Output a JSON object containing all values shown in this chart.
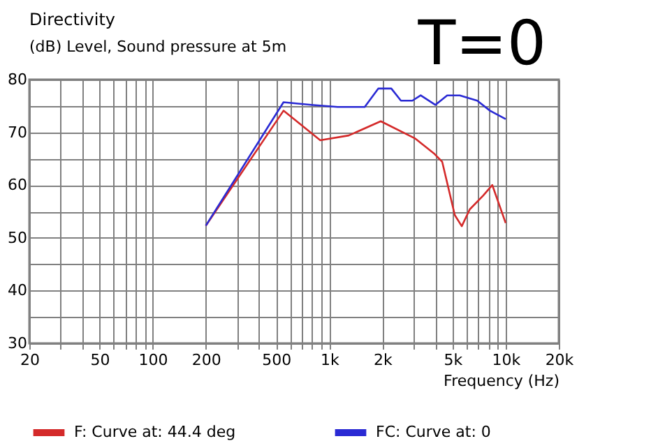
{
  "chart_data": {
    "type": "line",
    "title": "Directivity",
    "subtitle": "(dB) Level, Sound pressure at 5m",
    "xlabel": "Frequency (Hz)",
    "annotations": [
      "T=0"
    ],
    "log": "x",
    "grid": true,
    "legend": "bottom",
    "xlim": [
      20,
      20000
    ],
    "ylim": [
      30,
      80
    ],
    "xticks": [
      20,
      {
        "value": 30,
        "label": null
      },
      {
        "value": 40,
        "label": null
      },
      50,
      {
        "value": 60,
        "label": null
      },
      {
        "value": 70,
        "label": null
      },
      {
        "value": 80,
        "label": null
      },
      {
        "value": 90,
        "label": null
      },
      100,
      200,
      {
        "value": 300,
        "label": null
      },
      {
        "value": 400,
        "label": null
      },
      500,
      {
        "value": 600,
        "label": null
      },
      {
        "value": 700,
        "label": null
      },
      {
        "value": 800,
        "label": null
      },
      {
        "value": 900,
        "label": null
      },
      {
        "value": 1000,
        "label": "1k"
      },
      {
        "value": 2000,
        "label": "2k"
      },
      {
        "value": 3000,
        "label": null
      },
      {
        "value": 4000,
        "label": null
      },
      {
        "value": 5000,
        "label": "5k"
      },
      {
        "value": 6000,
        "label": null
      },
      {
        "value": 7000,
        "label": null
      },
      {
        "value": 8000,
        "label": null
      },
      {
        "value": 9000,
        "label": null
      },
      {
        "value": 10000,
        "label": "10k"
      },
      {
        "value": 20000,
        "label": "20k"
      }
    ],
    "yticks": [
      30,
      {
        "value": 35,
        "label": null
      },
      40,
      {
        "value": 45,
        "label": null
      },
      50,
      {
        "value": 55,
        "label": null
      },
      60,
      {
        "value": 65,
        "label": null
      },
      70,
      {
        "value": 75,
        "label": null
      },
      80
    ],
    "series": [
      {
        "name": "F: Curve at: 44.4 deg",
        "color": "#d42a2a",
        "x": [
          200,
          551,
          890,
          1290,
          1960,
          3080,
          3950,
          4370,
          5150,
          5640,
          6260,
          7450,
          8400,
          10000
        ],
        "values": [
          52.3,
          74.1,
          68.5,
          69.4,
          72.1,
          68.8,
          65.9,
          64.4,
          54.3,
          52.2,
          55.4,
          58,
          60,
          52.8
        ]
      },
      {
        "name": "FC: Curve at: 0",
        "color": "#2a2ad4",
        "x": [
          200,
          551,
          790,
          1115,
          1590,
          1900,
          2250,
          2550,
          2960,
          3300,
          4000,
          4660,
          5500,
          6900,
          8150,
          10000
        ],
        "values": [
          52.3,
          75.7,
          75.2,
          74.8,
          74.8,
          78.3,
          78.3,
          76,
          76,
          77,
          75.2,
          77,
          77,
          76,
          74.1,
          72.5
        ]
      }
    ]
  }
}
